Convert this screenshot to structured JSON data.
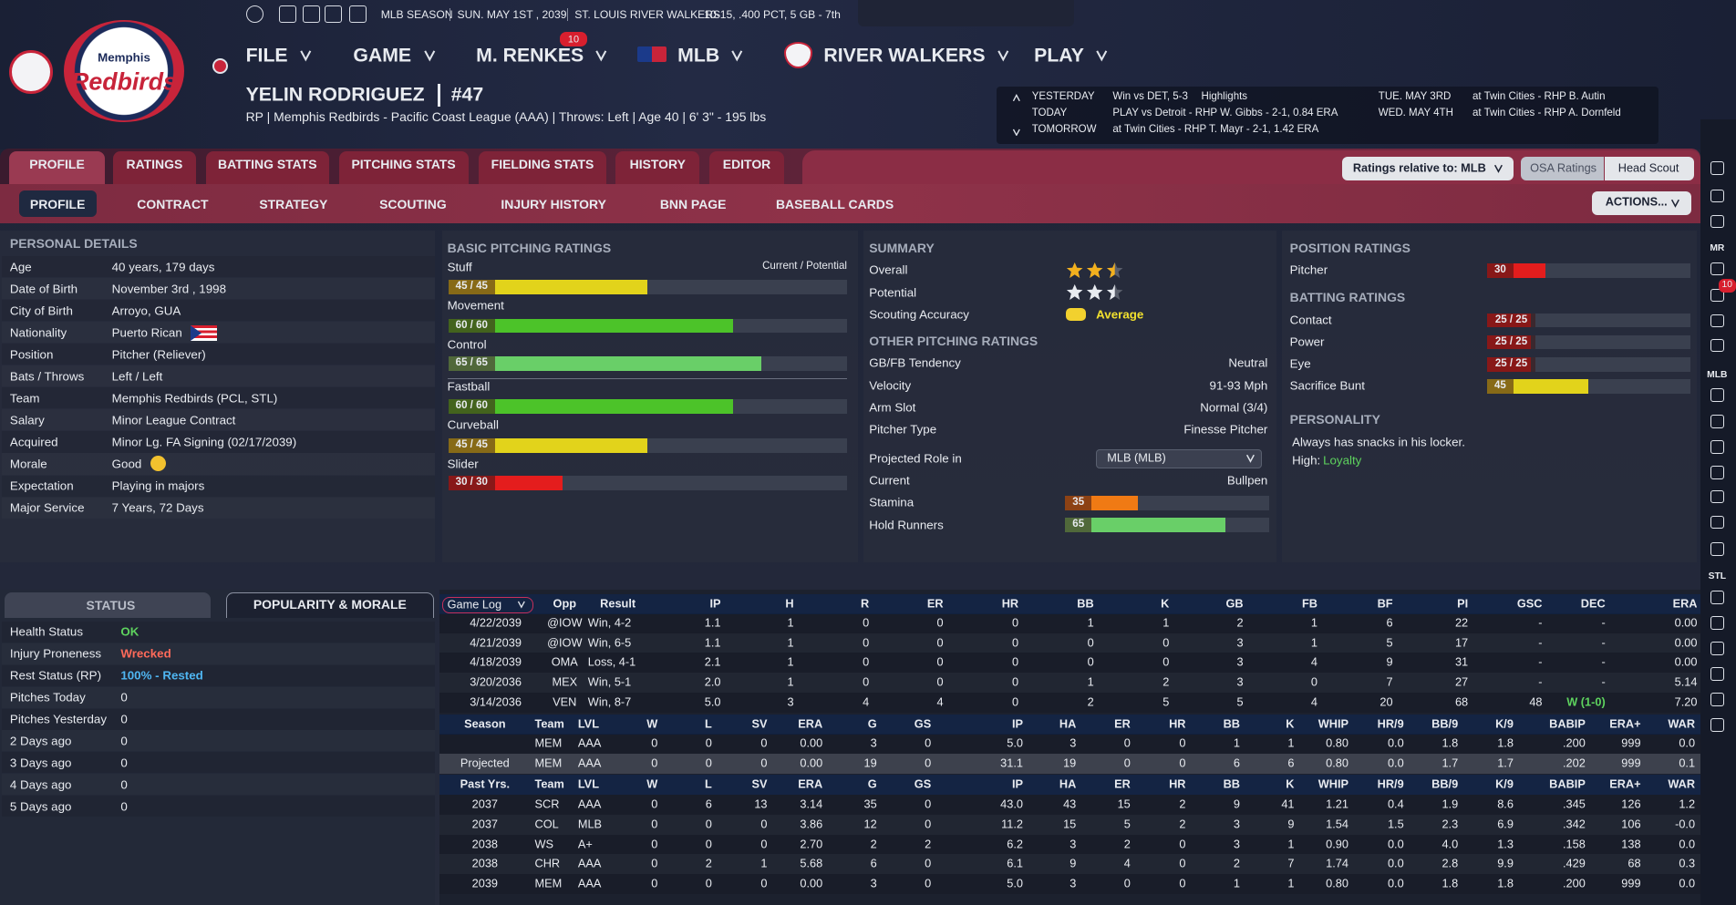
{
  "topbar": {
    "season": "MLB SEASON",
    "date": "SUN. MAY 1ST , 2039",
    "team": "ST. LOUIS RIVER WALKERS",
    "record": "10-15, .400 PCT, 5 GB - 7th"
  },
  "logo": {
    "line1": "Memphis",
    "line2": "Redbirds"
  },
  "menu": {
    "items": [
      "FILE",
      "GAME",
      "M. RENKES",
      "MLB",
      "RIVER WALKERS",
      "PLAY"
    ],
    "badge": 10
  },
  "player": {
    "name": "YELIN RODRIGUEZ",
    "number": "#47",
    "info": "RP | Memphis Redbirds - Pacific Coast League (AAA) | Throws: Left | Age 40 | 6' 3\" - 195 lbs"
  },
  "schedule": {
    "left": [
      {
        "day": "YESTERDAY",
        "text": "Win vs DET, 5-3",
        "extra": "Highlights"
      },
      {
        "day": "TODAY",
        "text": "PLAY vs Detroit - RHP W. Gibbs - 2-1, 0.84 ERA"
      },
      {
        "day": "TOMORROW",
        "text": "at Twin Cities - RHP T. Mayr - 2-1, 1.42 ERA"
      }
    ],
    "right": [
      {
        "day": "TUE. MAY 3RD",
        "text": "at Twin Cities - RHP B. Autin"
      },
      {
        "day": "WED. MAY 4TH",
        "text": "at Twin Cities - RHP A. Dornfeld"
      }
    ]
  },
  "tabs": [
    "PROFILE",
    "RATINGS",
    "BATTING STATS",
    "PITCHING STATS",
    "FIELDING STATS",
    "HISTORY",
    "EDITOR"
  ],
  "subtabs": [
    "PROFILE",
    "CONTRACT",
    "STRATEGY",
    "SCOUTING",
    "INJURY HISTORY",
    "BNN PAGE",
    "BASEBALL CARDS"
  ],
  "buttons": {
    "ratings_relative": "Ratings relative to: MLB",
    "osa": "OSA Ratings",
    "scout": "Head Scout",
    "actions": "ACTIONS..."
  },
  "sidebar": {
    "labels": [
      "MR",
      "MLB",
      "STL"
    ],
    "badge": 10
  },
  "personal": {
    "title": "PERSONAL DETAILS",
    "rows": [
      [
        "Age",
        "40 years, 179 days"
      ],
      [
        "Date of Birth",
        "November 3rd , 1998"
      ],
      [
        "City of Birth",
        "Arroyo, GUA"
      ],
      [
        "Nationality",
        "Puerto Rican"
      ],
      [
        "Position",
        "Pitcher (Reliever)"
      ],
      [
        "Bats / Throws",
        "Left / Left"
      ],
      [
        "Team",
        "Memphis Redbirds (PCL, STL)"
      ],
      [
        "Salary",
        "Minor League Contract"
      ],
      [
        "Acquired",
        "Minor Lg. FA Signing (02/17/2039)"
      ],
      [
        "Morale",
        "Good"
      ],
      [
        "Expectation",
        "Playing in majors"
      ],
      [
        "Major Service",
        "7 Years, 72 Days"
      ]
    ]
  },
  "pitching": {
    "title": "BASIC PITCHING RATINGS",
    "header": "Current / Potential",
    "items": [
      {
        "name": "Stuff",
        "label": "45 / 45",
        "value": 45,
        "color": "#e2d31b"
      },
      {
        "name": "Movement",
        "label": "60 / 60",
        "value": 60,
        "color": "#4cc329"
      },
      {
        "name": "Control",
        "label": "65 / 65",
        "value": 65,
        "color": "#69cf68"
      },
      {
        "name": "Fastball",
        "label": "60 / 60",
        "value": 60,
        "color": "#4cc329"
      },
      {
        "name": "Curveball",
        "label": "45 / 45",
        "value": 45,
        "color": "#e2d31b"
      },
      {
        "name": "Slider",
        "label": "30 / 30",
        "value": 30,
        "color": "#e41d1d"
      }
    ]
  },
  "summary": {
    "title": "SUMMARY",
    "overall_label": "Overall",
    "overall": 2.5,
    "potential_label": "Potential",
    "potential": 2.5,
    "accuracy_label": "Scouting Accuracy",
    "accuracy": "Average"
  },
  "other": {
    "title": "OTHER PITCHING RATINGS",
    "rows": [
      [
        "GB/FB Tendency",
        "Neutral"
      ],
      [
        "Velocity",
        "91-93 Mph"
      ],
      [
        "Arm Slot",
        "Normal (3/4)"
      ],
      [
        "Pitcher Type",
        "Finesse Pitcher"
      ]
    ],
    "role_label": "Projected Role in",
    "role_select": "MLB (MLB)",
    "current_label": "Current",
    "current": "Bullpen",
    "bars": [
      {
        "name": "Stamina",
        "value": 35,
        "color": "#f07a14"
      },
      {
        "name": "Hold Runners",
        "value": 65,
        "color": "#69cf68"
      }
    ]
  },
  "position": {
    "title": "POSITION RATINGS",
    "items": [
      {
        "name": "Pitcher",
        "value": 30,
        "color": "#e41d1d"
      }
    ]
  },
  "batting": {
    "title": "BATTING RATINGS",
    "items": [
      {
        "name": "Contact",
        "label": "25 / 25",
        "value": 25,
        "color": "#e41d1d"
      },
      {
        "name": "Power",
        "label": "25 / 25",
        "value": 25,
        "color": "#e41d1d"
      },
      {
        "name": "Eye",
        "label": "25 / 25",
        "value": 25,
        "color": "#e41d1d"
      },
      {
        "name": "Sacrifice Bunt",
        "value": 45,
        "color": "#e2d31b"
      }
    ]
  },
  "personality": {
    "title": "PERSONALITY",
    "text": "Always has snacks in his locker.",
    "high_label": "High:",
    "high": "Loyalty"
  },
  "status": {
    "tabs": [
      "STATUS",
      "POPULARITY & MORALE"
    ],
    "rows": [
      [
        "Health Status",
        "OK"
      ],
      [
        "Injury Proneness",
        "Wrecked"
      ],
      [
        "Rest Status (RP)",
        "100% - Rested"
      ],
      [
        "Pitches Today",
        "0"
      ],
      [
        "Pitches Yesterday",
        "0"
      ],
      [
        "2 Days ago",
        "0"
      ],
      [
        "3 Days ago",
        "0"
      ],
      [
        "4 Days ago",
        "0"
      ],
      [
        "5 Days ago",
        "0"
      ]
    ]
  },
  "gamelog": {
    "select": "Game Log",
    "headers": [
      "Opp",
      "Result",
      "IP",
      "H",
      "R",
      "ER",
      "HR",
      "BB",
      "K",
      "GB",
      "FB",
      "BF",
      "PI",
      "GSC",
      "DEC",
      "ERA"
    ],
    "rows": [
      [
        "4/22/2039",
        "@IOW",
        "Win, 4-2",
        "1.1",
        "1",
        "0",
        "0",
        "0",
        "1",
        "1",
        "2",
        "1",
        "6",
        "22",
        "-",
        "-",
        "0.00"
      ],
      [
        "4/21/2039",
        "@IOW",
        "Win, 6-5",
        "1.1",
        "1",
        "0",
        "0",
        "0",
        "0",
        "0",
        "3",
        "1",
        "5",
        "17",
        "-",
        "-",
        "0.00"
      ],
      [
        "4/18/2039",
        "OMA",
        "Loss, 4-1",
        "2.1",
        "1",
        "0",
        "0",
        "0",
        "0",
        "0",
        "3",
        "4",
        "9",
        "31",
        "-",
        "-",
        "0.00"
      ],
      [
        "3/20/2036",
        "MEX",
        "Win, 5-1",
        "2.0",
        "1",
        "0",
        "0",
        "0",
        "1",
        "2",
        "3",
        "0",
        "7",
        "27",
        "-",
        "-",
        "5.14"
      ],
      [
        "3/14/2036",
        "VEN",
        "Win, 8-7",
        "5.0",
        "3",
        "4",
        "4",
        "0",
        "2",
        "5",
        "5",
        "4",
        "20",
        "68",
        "48",
        "W (1-0)",
        "7.20"
      ]
    ]
  },
  "season": {
    "headers": [
      "Season",
      "Team",
      "LVL",
      "W",
      "L",
      "SV",
      "ERA",
      "G",
      "GS",
      "IP",
      "HA",
      "ER",
      "HR",
      "BB",
      "K",
      "WHIP",
      "HR/9",
      "BB/9",
      "K/9",
      "BABIP",
      "ERA+",
      "WAR"
    ],
    "current": [
      null,
      "MEM",
      "AAA",
      "0",
      "0",
      "0",
      "0.00",
      "3",
      "0",
      "5.0",
      "3",
      "0",
      "0",
      "1",
      "1",
      "0.80",
      "0.0",
      "1.8",
      "1.8",
      ".200",
      "999",
      "0.0"
    ],
    "projected": [
      "Projected",
      "MEM",
      "AAA",
      "0",
      "0",
      "0",
      "0.00",
      "19",
      "0",
      "31.1",
      "19",
      "0",
      "0",
      "6",
      "6",
      "0.80",
      "0.0",
      "1.7",
      "1.7",
      ".202",
      "999",
      "0.1"
    ],
    "past_headers": [
      "Past Yrs.",
      "Team",
      "LVL",
      "W",
      "L",
      "SV",
      "ERA",
      "G",
      "GS",
      "IP",
      "HA",
      "ER",
      "HR",
      "BB",
      "K",
      "WHIP",
      "HR/9",
      "BB/9",
      "K/9",
      "BABIP",
      "ERA+",
      "WAR"
    ],
    "past": [
      [
        "2037",
        "SCR",
        "AAA",
        "0",
        "6",
        "13",
        "3.14",
        "35",
        "0",
        "43.0",
        "43",
        "15",
        "2",
        "9",
        "41",
        "1.21",
        "0.4",
        "1.9",
        "8.6",
        ".345",
        "126",
        "1.2"
      ],
      [
        "2037",
        "COL",
        "MLB",
        "0",
        "0",
        "0",
        "3.86",
        "12",
        "0",
        "11.2",
        "15",
        "5",
        "2",
        "3",
        "9",
        "1.54",
        "1.5",
        "2.3",
        "6.9",
        ".342",
        "106",
        "-0.0"
      ],
      [
        "2038",
        "WS",
        "A+",
        "0",
        "0",
        "0",
        "2.70",
        "2",
        "2",
        "6.2",
        "3",
        "2",
        "0",
        "3",
        "1",
        "0.90",
        "0.0",
        "4.0",
        "1.3",
        ".158",
        "138",
        "0.0"
      ],
      [
        "2038",
        "CHR",
        "AAA",
        "0",
        "2",
        "1",
        "5.68",
        "6",
        "0",
        "6.1",
        "9",
        "4",
        "0",
        "2",
        "7",
        "1.74",
        "0.0",
        "2.8",
        "9.9",
        ".429",
        "68",
        "0.3"
      ],
      [
        "2039",
        "MEM",
        "AAA",
        "0",
        "0",
        "0",
        "0.00",
        "3",
        "0",
        "5.0",
        "3",
        "0",
        "0",
        "1",
        "1",
        "0.80",
        "0.0",
        "1.8",
        "1.8",
        ".200",
        "999",
        "0.0"
      ]
    ]
  }
}
